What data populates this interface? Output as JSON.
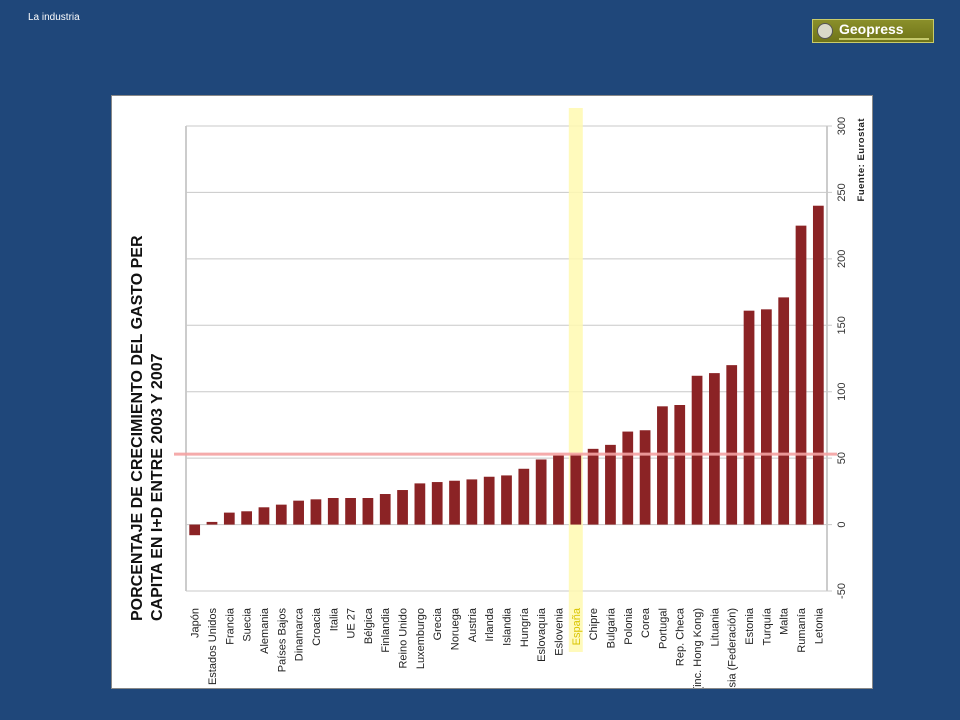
{
  "slide": {
    "title": "La industria"
  },
  "logo": {
    "name": "Geopress"
  },
  "chart_data": {
    "type": "bar",
    "title_lines": [
      "PORCENTAJE DE CRECIMIENTO DEL GASTO PER",
      "CAPITA EN I+D ENTRE 2003 Y 2007"
    ],
    "source": "Fuente: Eurostat",
    "categories": [
      "Japón",
      "Estados Unidos",
      "Francia",
      "Suecia",
      "Alemania",
      "Países Bajos",
      "Dinamarca",
      "Croacia",
      "Italia",
      "UE 27",
      "Bélgica",
      "Finlandia",
      "Reino Unido",
      "Luxemburgo",
      "Grecia",
      "Noruega",
      "Austria",
      "Irlanda",
      "Islandia",
      "Hungría",
      "Eslovaquia",
      "Eslovenia",
      "España",
      "Chipre",
      "Bulgaria",
      "Polonia",
      "Corea",
      "Portugal",
      "Rep. Checa",
      "China (inc. Hong Kong)",
      "Lituania",
      "Rusia (Federación)",
      "Estonia",
      "Turquía",
      "Malta",
      "Rumanía",
      "Letonia"
    ],
    "values": [
      -8,
      2,
      9,
      10,
      13,
      15,
      18,
      19,
      20,
      20,
      20,
      23,
      26,
      31,
      32,
      33,
      34,
      36,
      37,
      42,
      49,
      52,
      53,
      57,
      60,
      70,
      71,
      89,
      90,
      112,
      114,
      120,
      161,
      162,
      171,
      225,
      240
    ],
    "ylim": [
      -50,
      300
    ],
    "yticks": [
      -50,
      0,
      50,
      100,
      150,
      200,
      250,
      300
    ],
    "grid": true,
    "highlight_category": "España",
    "reference_value": 53,
    "colors": {
      "bar": "#8b2325",
      "highlight_band": "#fff9b0",
      "reference_line": "#f4a3a3",
      "grid": "#c8c8c8"
    }
  }
}
